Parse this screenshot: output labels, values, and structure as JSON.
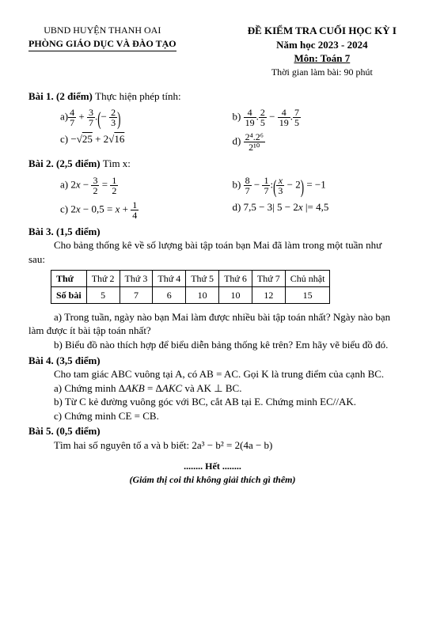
{
  "header": {
    "left_line1": "UBND HUYỆN THANH OAI",
    "left_line2": "PHÒNG GIÁO DỤC VÀ ĐÀO TẠO",
    "right_line1": "ĐỀ KIỂM TRA CUỐI HỌC KỲ I",
    "right_line2": "Năm học 2023 - 2024",
    "right_line3": "Môn: Toán 7",
    "right_line4": "Thời gian làm bài: 90 phút"
  },
  "bai1": {
    "title": "Bài 1. (2 điểm) ",
    "instr": "Thực hiện phép tính:",
    "a_prefix": "a)",
    "a_f1n": "4",
    "a_f1d": "7",
    "a_f2n": "3",
    "a_f2d": "7",
    "a_f3n": "2",
    "a_f3d": "3",
    "b_prefix": "b) ",
    "b_f1n": "4",
    "b_f1d": "19",
    "b_f2n": "2",
    "b_f2d": "5",
    "b_f3n": "4",
    "b_f3d": "19",
    "b_f4n": "7",
    "b_f4d": "5",
    "c_prefix": "c)  −",
    "c_r1": "25",
    "c_mid": " + 2",
    "c_r2": "16",
    "d_prefix": "d) ",
    "d_num": "2⁴.2⁶",
    "d_den": "2¹⁰"
  },
  "bai2": {
    "title": "Bài 2. (2,5 điểm) ",
    "instr": "Tìm x:",
    "a_prefix": "a) 2",
    "a_x": "x",
    "a_minus": " − ",
    "a_f1n": "3",
    "a_f1d": "2",
    "a_eq": " = ",
    "a_f2n": "1",
    "a_f2d": "2",
    "b_prefix": "b) ",
    "b_f1n": "8",
    "b_f1d": "7",
    "b_minus": " − ",
    "b_f2n": "1",
    "b_f2d": "7",
    "b_colon": ":",
    "b_f3n": "x",
    "b_f3d": "3",
    "b_minus2": " − 2",
    "b_eqm1": " = −1",
    "c_prefix": "c) 2",
    "c_x": "x",
    "c_mid": " − 0,5 = ",
    "c_x2": "x",
    "c_plus": " + ",
    "c_fn": "1",
    "c_fd": "4",
    "d_text": "d) 7,5 − 3| 5 − 2",
    "d_x": "x",
    "d_rest": " |= 4,5"
  },
  "bai3": {
    "title": "Bài 3. (1,5 điểm)",
    "intro": "Cho bảng thống kê về số lượng bài tập toán bạn Mai đã làm trong một tuần như sau:",
    "table": {
      "row1_header": "Thứ",
      "cols": [
        "Thứ 2",
        "Thứ 3",
        "Thứ 4",
        "Thứ 5",
        "Thứ 6",
        "Thứ 7",
        "Chủ nhật"
      ],
      "row2_header": "Số bài",
      "vals": [
        "5",
        "7",
        "6",
        "10",
        "10",
        "12",
        "15"
      ]
    },
    "qa": "a) Trong tuần, ngày nào bạn Mai làm được nhiều bài tập toán nhất? Ngày nào bạn làm được ít bài tập toán nhất?",
    "qb": "b) Biểu đồ nào thích hợp để biểu diễn bảng thống kê trên? Em hãy vẽ biểu đồ đó."
  },
  "bai4": {
    "title": "Bài 4. (3,5 điểm)",
    "intro": "Cho tam giác ABC vuông tại A, có AB = AC. Gọi K là trung điểm của cạnh BC.",
    "a": "a) Chứng minh Δ",
    "a_it1": "AKB",
    "a_mid": " = Δ",
    "a_it2": "AKC",
    "a_rest": " và AK ⊥ BC.",
    "b": "b) Từ C kẻ đường vuông góc với BC, cắt AB tại E. Chứng minh EC//AK.",
    "c": "c) Chứng minh CE = CB."
  },
  "bai5": {
    "title": "Bài 5. (0,5 điểm)",
    "text": "Tìm hai số nguyên tố a và b biết:  2a³ − b² = 2(4a − b)"
  },
  "footer": {
    "end": "........ Hết ........",
    "note": "(Giám thị coi thi không giải thích gì thêm)"
  }
}
